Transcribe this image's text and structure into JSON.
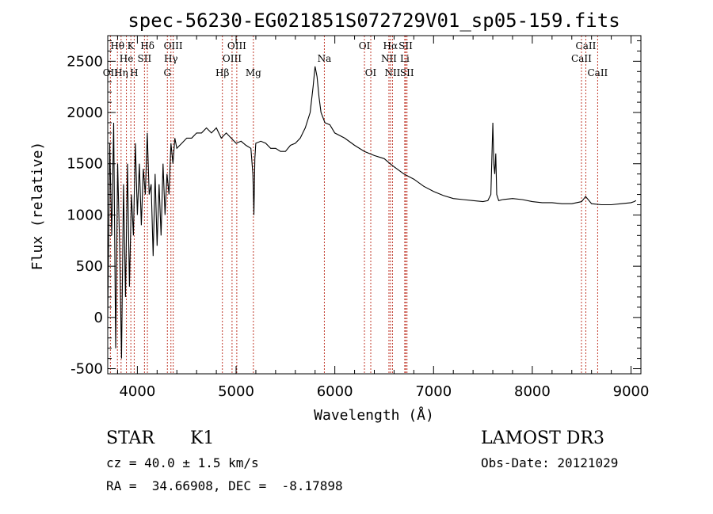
{
  "chart_data": {
    "type": "line",
    "title": "spec-56230-EG021851S072729V01_sp05-159.fits",
    "xlabel": "Wavelength (Å)",
    "ylabel": "Flux (relative)",
    "xlim": [
      3700,
      9100
    ],
    "ylim": [
      -550,
      2750
    ],
    "xticks": [
      4000,
      5000,
      6000,
      7000,
      8000,
      9000
    ],
    "yticks": [
      -500,
      0,
      500,
      1000,
      1500,
      2000,
      2500
    ],
    "grid": false,
    "series": [
      {
        "x": [
          3700,
          3720,
          3740,
          3760,
          3780,
          3800,
          3820,
          3840,
          3860,
          3880,
          3900,
          3920,
          3940,
          3960,
          3980,
          4000,
          4020,
          4040,
          4060,
          4080,
          4100,
          4120,
          4140,
          4160,
          4180,
          4200,
          4220,
          4240,
          4260,
          4280,
          4300,
          4320,
          4340,
          4360,
          4380,
          4400,
          4450,
          4500,
          4550,
          4600,
          4650,
          4700,
          4750,
          4800,
          4850,
          4900,
          4950,
          5000,
          5050,
          5100,
          5150,
          5170,
          5180,
          5190,
          5200,
          5250,
          5300,
          5350,
          5400,
          5450,
          5500,
          5550,
          5600,
          5650,
          5700,
          5750,
          5780,
          5800,
          5820,
          5840,
          5860,
          5880,
          5900,
          5950,
          6000,
          6100,
          6200,
          6300,
          6400,
          6500,
          6560,
          6600,
          6700,
          6800,
          6900,
          7000,
          7100,
          7200,
          7300,
          7400,
          7500,
          7550,
          7580,
          7600,
          7610,
          7620,
          7630,
          7640,
          7660,
          7700,
          7800,
          7900,
          8000,
          8100,
          8200,
          8300,
          8400,
          8500,
          8540,
          8600,
          8700,
          8800,
          8900,
          9000,
          9030,
          9050
        ],
        "y": [
          0,
          1700,
          800,
          1900,
          -300,
          1500,
          700,
          -400,
          1300,
          200,
          1500,
          300,
          1200,
          800,
          1700,
          1000,
          1500,
          900,
          1450,
          1200,
          1800,
          1200,
          1300,
          600,
          1400,
          700,
          1300,
          800,
          1500,
          1000,
          1400,
          1200,
          1700,
          1500,
          1750,
          1650,
          1700,
          1750,
          1750,
          1800,
          1800,
          1850,
          1800,
          1850,
          1750,
          1800,
          1750,
          1700,
          1720,
          1680,
          1650,
          1400,
          1000,
          1550,
          1700,
          1720,
          1700,
          1650,
          1650,
          1620,
          1620,
          1680,
          1700,
          1750,
          1850,
          2000,
          2250,
          2450,
          2350,
          2150,
          2000,
          1950,
          1900,
          1880,
          1800,
          1750,
          1680,
          1620,
          1580,
          1550,
          1500,
          1470,
          1400,
          1350,
          1280,
          1230,
          1190,
          1160,
          1150,
          1140,
          1130,
          1140,
          1200,
          1900,
          1500,
          1400,
          1600,
          1200,
          1140,
          1150,
          1160,
          1150,
          1130,
          1120,
          1120,
          1110,
          1110,
          1130,
          1180,
          1110,
          1100,
          1100,
          1110,
          1120,
          1130,
          1140
        ]
      }
    ],
    "lines": [
      {
        "x": 3727,
        "label": "OII",
        "row": 3
      },
      {
        "x": 3798,
        "label": "Hθ",
        "row": 1
      },
      {
        "x": 3835,
        "label": "Hη",
        "row": 3
      },
      {
        "x": 3889,
        "label": "He",
        "row": 2
      },
      {
        "x": 3934,
        "label": "K",
        "row": 1
      },
      {
        "x": 3968,
        "label": "H",
        "row": 3
      },
      {
        "x": 4072,
        "label": "SII",
        "row": 2
      },
      {
        "x": 4102,
        "label": "Hδ",
        "row": 1
      },
      {
        "x": 4304,
        "label": "G",
        "row": 3
      },
      {
        "x": 4340,
        "label": "Hγ",
        "row": 2
      },
      {
        "x": 4363,
        "label": "OIII",
        "row": 1
      },
      {
        "x": 4861,
        "label": "Hβ",
        "row": 3
      },
      {
        "x": 4959,
        "label": "OIII",
        "row": 2
      },
      {
        "x": 5007,
        "label": "OIII",
        "row": 1
      },
      {
        "x": 5175,
        "label": "Mg",
        "row": 3
      },
      {
        "x": 5894,
        "label": "Na",
        "row": 2
      },
      {
        "x": 6300,
        "label": "OI",
        "row": 1
      },
      {
        "x": 6364,
        "label": "OI",
        "row": 3
      },
      {
        "x": 6548,
        "label": "NII",
        "row": 2
      },
      {
        "x": 6563,
        "label": "Hα",
        "row": 1
      },
      {
        "x": 6584,
        "label": "NII",
        "row": 3
      },
      {
        "x": 6708,
        "label": "Li",
        "row": 2
      },
      {
        "x": 6717,
        "label": "SII",
        "row": 1
      },
      {
        "x": 6731,
        "label": "SII",
        "row": 3
      },
      {
        "x": 8498,
        "label": "CaII",
        "row": 2
      },
      {
        "x": 8542,
        "label": "CaII",
        "row": 1
      },
      {
        "x": 8662,
        "label": "CaII",
        "row": 3
      }
    ],
    "colors": {
      "spectrum": "#000000",
      "lines": "#c0392b"
    }
  },
  "info": {
    "class": "STAR",
    "subclass": "K1",
    "survey": "LAMOST DR3",
    "cz": "cz = 40.0 ± 1.5 km/s",
    "obsdate": "Obs-Date: 20121029",
    "radec": "RA =  34.66908, DEC =  -8.17898"
  }
}
